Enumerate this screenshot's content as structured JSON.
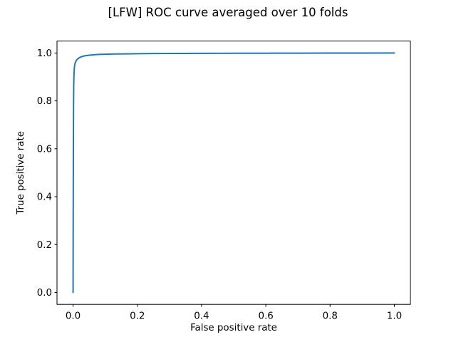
{
  "chart_data": {
    "type": "line",
    "title": "[LFW] ROC curve averaged over 10 folds",
    "xlabel": "False positive rate",
    "ylabel": "True positive rate",
    "xlim": [
      -0.05,
      1.05
    ],
    "ylim": [
      -0.05,
      1.05
    ],
    "x_ticks": [
      0.0,
      0.2,
      0.4,
      0.6,
      0.8,
      1.0
    ],
    "x_tick_labels": [
      "0.0",
      "0.2",
      "0.4",
      "0.6",
      "0.8",
      "1.0"
    ],
    "y_ticks": [
      0.0,
      0.2,
      0.4,
      0.6,
      0.8,
      1.0
    ],
    "y_tick_labels": [
      "0.0",
      "0.2",
      "0.4",
      "0.6",
      "0.8",
      "1.0"
    ],
    "grid": false,
    "legend": null,
    "background": "#ffffff",
    "line_color": "#1f77b4",
    "line_width": 2,
    "series": [
      {
        "x": [
          0.0,
          0.0005,
          0.001,
          0.0015,
          0.002,
          0.0025,
          0.003,
          0.004,
          0.005,
          0.0065,
          0.008,
          0.01,
          0.013,
          0.016,
          0.02,
          0.025,
          0.032,
          0.04,
          0.052,
          0.065,
          0.08,
          0.1,
          0.13,
          0.16,
          0.2,
          0.25,
          0.32,
          0.4,
          0.5,
          0.6,
          0.7,
          0.8,
          0.9,
          1.0
        ],
        "y": [
          0.0,
          0.35,
          0.62,
          0.78,
          0.86,
          0.895,
          0.915,
          0.938,
          0.949,
          0.9575,
          0.9635,
          0.968,
          0.9735,
          0.977,
          0.981,
          0.984,
          0.987,
          0.989,
          0.991,
          0.9925,
          0.994,
          0.995,
          0.996,
          0.9965,
          0.9972,
          0.9977,
          0.9982,
          0.9986,
          0.9989,
          0.9991,
          0.9994,
          0.9996,
          0.9998,
          1.0
        ]
      }
    ]
  }
}
